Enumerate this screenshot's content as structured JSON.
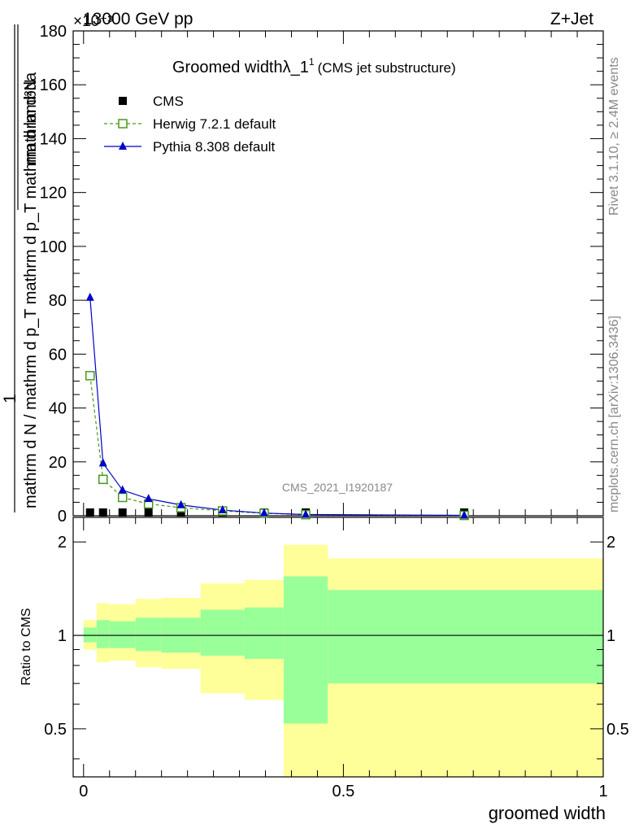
{
  "header": {
    "left": "13000 GeV pp",
    "right": "Z+Jet",
    "exponent": "×10⁻³"
  },
  "side_texts": {
    "rivet": "Rivet 3.1.10, ≥ 2.4M events",
    "mcplots": "mcplots.cern.ch [arXiv:1306.3436]"
  },
  "analysis_id": "CMS_2021_I1920187",
  "colors": {
    "cms": "#000000",
    "herwig": "#4a9a1a",
    "pythia": "#0000cc",
    "band_inner": "#99ff99",
    "band_outer": "#ffff99"
  },
  "chart_data": [
    {
      "type": "line",
      "title": "Groomed widthλ_1¹",
      "title_main": "Groomed widthλ_1",
      "title_sup": "1",
      "title_suffix": "(CMS jet substructure)",
      "ylabel_numerator": "mathrm d²N",
      "ylabel_denominator": "mathrm d N / mathrm d p_T mathrm d p_T mathrm d lambda",
      "ylabel_num": "1",
      "xlim": [
        -0.02,
        1.0
      ],
      "ylim": [
        0,
        180
      ],
      "y_scale_label": "×10⁻³",
      "yticks": [
        0,
        20,
        40,
        60,
        80,
        100,
        120,
        140,
        160,
        180
      ],
      "legend_position": "top-left",
      "series": [
        {
          "name": "CMS",
          "marker": "square-filled",
          "x": [
            0.0125,
            0.0375,
            0.075,
            0.125,
            0.1875,
            0.2675,
            0.3475,
            0.4275,
            0.7325
          ],
          "y": [
            0.3,
            0.3,
            0.3,
            0.3,
            0.3,
            0.3,
            0.3,
            0.3,
            0.3
          ]
        },
        {
          "name": "Herwig 7.2.1 default",
          "marker": "square-open",
          "dash": true,
          "x": [
            0.0125,
            0.0375,
            0.075,
            0.125,
            0.1875,
            0.2675,
            0.3475,
            0.4275,
            0.7325
          ],
          "y": [
            52,
            13.5,
            6.8,
            4.4,
            3.0,
            1.8,
            0.9,
            0.4,
            0.12
          ]
        },
        {
          "name": "Pythia 8.308 default",
          "marker": "triangle-filled",
          "x": [
            0.0125,
            0.0375,
            0.075,
            0.125,
            0.1875,
            0.2675,
            0.3475,
            0.4275,
            0.7325
          ],
          "y": [
            81,
            19.5,
            9.5,
            6.3,
            4.0,
            2.1,
            1.0,
            0.45,
            0.14
          ]
        }
      ]
    },
    {
      "type": "area",
      "ylabel": "Ratio to CMS",
      "xlabel": "groomed width",
      "xlim": [
        -0.02,
        1.0
      ],
      "ylim": [
        0.35,
        2.4
      ],
      "yticks_labeled": [
        0.5,
        1,
        2
      ],
      "xticks_labeled": [
        0,
        0.5,
        1
      ],
      "xtick_labels": [
        "0",
        "0.5",
        "1"
      ],
      "ytick_labels": [
        "0.5",
        "1",
        "2"
      ],
      "bins": [
        {
          "lo": 0.0,
          "hi": 0.025,
          "inner": [
            0.95,
            1.06
          ],
          "outer": [
            0.9,
            1.12
          ]
        },
        {
          "lo": 0.025,
          "hi": 0.05,
          "inner": [
            0.91,
            1.12
          ],
          "outer": [
            0.82,
            1.27
          ]
        },
        {
          "lo": 0.05,
          "hi": 0.1,
          "inner": [
            0.91,
            1.11
          ],
          "outer": [
            0.83,
            1.26
          ]
        },
        {
          "lo": 0.1,
          "hi": 0.15,
          "inner": [
            0.89,
            1.14
          ],
          "outer": [
            0.79,
            1.31
          ]
        },
        {
          "lo": 0.15,
          "hi": 0.225,
          "inner": [
            0.88,
            1.14
          ],
          "outer": [
            0.78,
            1.32
          ]
        },
        {
          "lo": 0.225,
          "hi": 0.31,
          "inner": [
            0.86,
            1.21
          ],
          "outer": [
            0.65,
            1.47
          ]
        },
        {
          "lo": 0.31,
          "hi": 0.385,
          "inner": [
            0.84,
            1.23
          ],
          "outer": [
            0.62,
            1.51
          ]
        },
        {
          "lo": 0.385,
          "hi": 0.47,
          "inner": [
            0.52,
            1.55
          ],
          "outer": [
            0.3,
            1.96
          ]
        },
        {
          "lo": 0.47,
          "hi": 1.0,
          "inner": [
            0.7,
            1.4
          ],
          "outer": [
            0.3,
            1.77
          ]
        }
      ]
    }
  ]
}
